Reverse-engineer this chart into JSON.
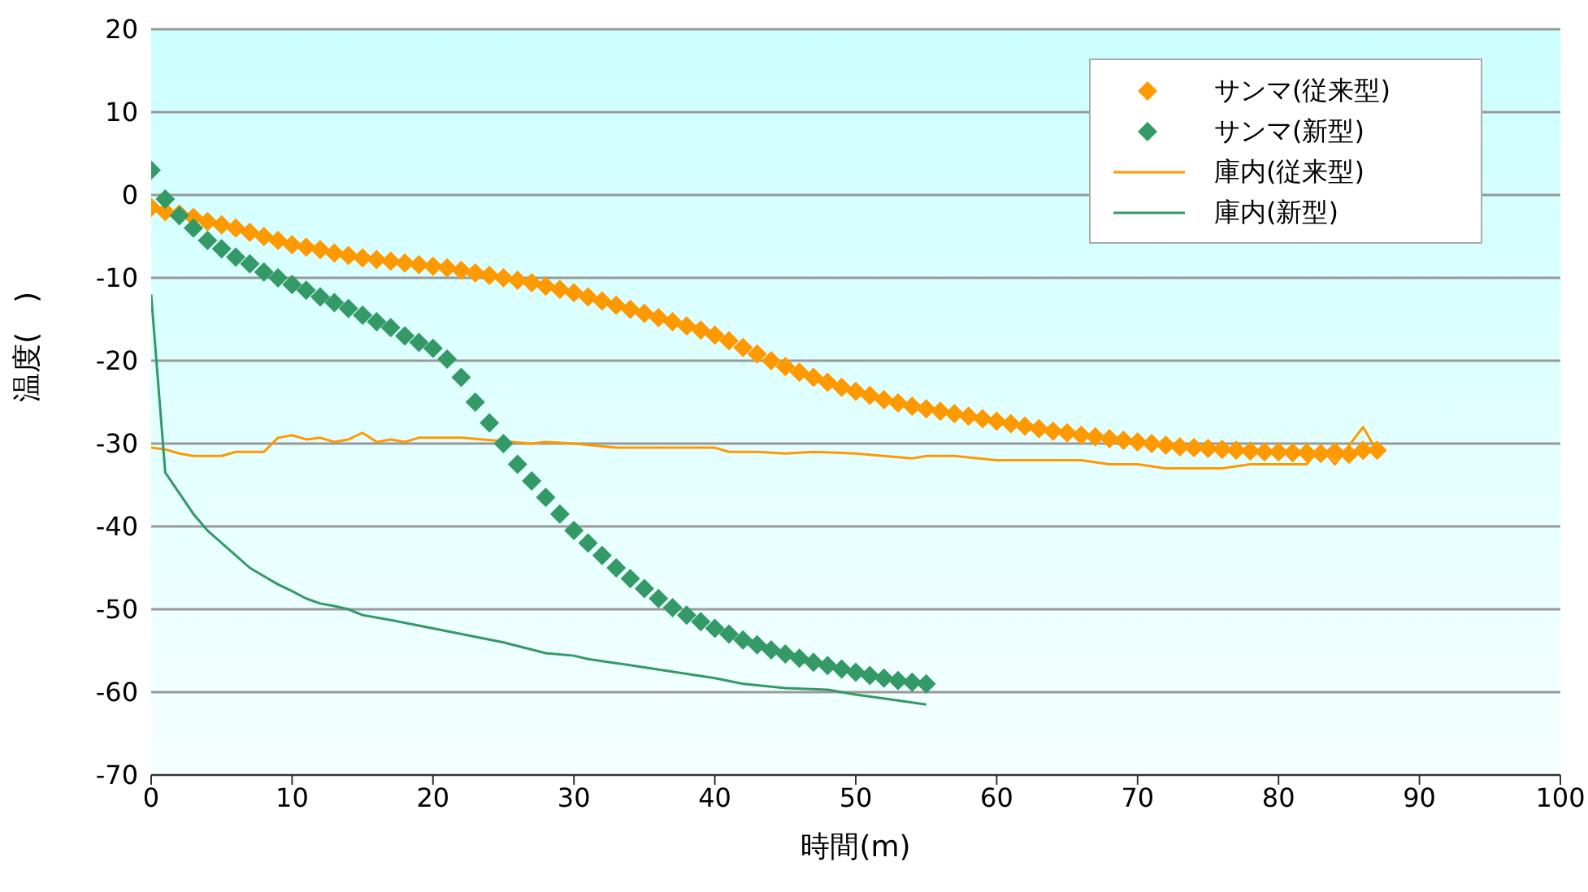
{
  "chart_data": {
    "type": "line",
    "xlabel": "時間(m)",
    "ylabel": "温度(　)",
    "xlim": [
      0,
      100
    ],
    "xticks": [
      0,
      10,
      20,
      30,
      40,
      50,
      60,
      70,
      80,
      90,
      100
    ],
    "ylim": [
      -70,
      20
    ],
    "yticks": [
      -70,
      -60,
      -50,
      -40,
      -30,
      -20,
      -10,
      0,
      10,
      20
    ],
    "grid": "y",
    "legend": "top right",
    "series": [
      {
        "name": "サンマ(従来型)",
        "type": "scatter",
        "marker": "diamond",
        "color": "#ff9900",
        "x": [
          0,
          1,
          2,
          3,
          4,
          5,
          6,
          7,
          8,
          9,
          10,
          11,
          12,
          13,
          14,
          15,
          16,
          17,
          18,
          19,
          20,
          21,
          22,
          23,
          24,
          25,
          26,
          27,
          28,
          29,
          30,
          31,
          32,
          33,
          34,
          35,
          36,
          37,
          38,
          39,
          40,
          41,
          42,
          43,
          44,
          45,
          46,
          47,
          48,
          49,
          50,
          51,
          52,
          53,
          54,
          55,
          56,
          57,
          58,
          59,
          60,
          61,
          62,
          63,
          64,
          65,
          66,
          67,
          68,
          69,
          70,
          71,
          72,
          73,
          74,
          75,
          76,
          77,
          78,
          79,
          80,
          81,
          82,
          83,
          84,
          85,
          86,
          87
        ],
        "values": [
          -1.5,
          -2,
          -2.3,
          -2.7,
          -3.2,
          -3.6,
          -4,
          -4.5,
          -5,
          -5.5,
          -6,
          -6.3,
          -6.6,
          -7,
          -7.3,
          -7.6,
          -7.8,
          -8,
          -8.2,
          -8.4,
          -8.6,
          -8.8,
          -9.1,
          -9.4,
          -9.7,
          -10,
          -10.3,
          -10.6,
          -11,
          -11.4,
          -11.8,
          -12.3,
          -12.8,
          -13.3,
          -13.8,
          -14.3,
          -14.8,
          -15.3,
          -15.8,
          -16.3,
          -16.9,
          -17.6,
          -18.4,
          -19.2,
          -20,
          -20.7,
          -21.4,
          -22,
          -22.6,
          -23.2,
          -23.7,
          -24.2,
          -24.7,
          -25.1,
          -25.5,
          -25.8,
          -26.1,
          -26.4,
          -26.7,
          -27,
          -27.3,
          -27.6,
          -27.9,
          -28.2,
          -28.5,
          -28.7,
          -29,
          -29.2,
          -29.4,
          -29.6,
          -29.8,
          -30,
          -30.2,
          -30.4,
          -30.5,
          -30.6,
          -30.7,
          -30.8,
          -30.9,
          -31,
          -31,
          -31.1,
          -31.1,
          -31.2,
          -31,
          -31.3,
          -30.8,
          -30.8
        ]
      },
      {
        "name": "サンマ(新型)",
        "type": "scatter",
        "marker": "diamond",
        "color": "#339966",
        "x": [
          0,
          1,
          2,
          3,
          4,
          5,
          6,
          7,
          8,
          9,
          10,
          11,
          12,
          13,
          14,
          15,
          16,
          17,
          18,
          19,
          20,
          21,
          22,
          23,
          24,
          25,
          26,
          27,
          28,
          29,
          30,
          31,
          32,
          33,
          34,
          35,
          36,
          37,
          38,
          39,
          40,
          41,
          42,
          43,
          44,
          45,
          46,
          47,
          48,
          49,
          50,
          51,
          52,
          53,
          54,
          55
        ],
        "values": [
          3,
          -0.5,
          -2.5,
          -4,
          -5.5,
          -6.5,
          -7.5,
          -8.3,
          -9.3,
          -10,
          -10.8,
          -11.5,
          -12.3,
          -13,
          -13.7,
          -14.5,
          -15.3,
          -16,
          -17,
          -17.8,
          -18.5,
          -19.8,
          -22,
          -25,
          -27.5,
          -30,
          -32.5,
          -34.5,
          -36.5,
          -38.5,
          -40.5,
          -42,
          -43.5,
          -45,
          -46.3,
          -47.5,
          -48.7,
          -49.8,
          -50.7,
          -51.5,
          -52.3,
          -53,
          -53.7,
          -54.3,
          -54.9,
          -55.4,
          -55.9,
          -56.4,
          -56.8,
          -57.2,
          -57.6,
          -58,
          -58.3,
          -58.6,
          -58.8,
          -59
        ]
      },
      {
        "name": "庫内(従来型)",
        "color": "#ff9900",
        "x": [
          0,
          1,
          2,
          3,
          5,
          6,
          8,
          9,
          10,
          11,
          12,
          13,
          14,
          15,
          16,
          17,
          18,
          19,
          20,
          22,
          27,
          28,
          30,
          33,
          38,
          40,
          41,
          43,
          45,
          47,
          50,
          52,
          54,
          55,
          57,
          60,
          62,
          66,
          68,
          70,
          72,
          76,
          78,
          80,
          82,
          83,
          84,
          86,
          87
        ],
        "values": [
          -30.5,
          -30.7,
          -31.2,
          -31.5,
          -31.5,
          -31,
          -31,
          -29.3,
          -29,
          -29.5,
          -29.3,
          -29.8,
          -29.5,
          -28.7,
          -29.8,
          -29.5,
          -29.8,
          -29.3,
          -29.3,
          -29.3,
          -30,
          -29.8,
          -30,
          -30.5,
          -30.5,
          -30.5,
          -31,
          -31,
          -31.2,
          -31,
          -31.2,
          -31.5,
          -31.8,
          -31.5,
          -31.5,
          -32,
          -32,
          -32,
          -32.5,
          -32.5,
          -33,
          -33,
          -32.5,
          -32.5,
          -32.5,
          -30.5,
          -32.5,
          -28,
          -31
        ]
      },
      {
        "name": "庫内(新型)",
        "color": "#339966",
        "x": [
          0,
          1,
          2,
          3,
          4,
          5,
          6,
          7,
          8,
          9,
          10,
          11,
          12,
          13,
          14,
          15,
          17,
          20,
          25,
          28,
          30,
          31,
          35,
          40,
          42,
          45,
          48,
          50,
          53,
          55
        ],
        "values": [
          -12,
          -33.5,
          -36,
          -38.5,
          -40.5,
          -42,
          -43.5,
          -45,
          -46,
          -47,
          -47.8,
          -48.7,
          -49.3,
          -49.6,
          -50,
          -50.7,
          -51.3,
          -52.3,
          -54,
          -55.3,
          -55.6,
          -56,
          -57,
          -58.3,
          -59,
          -59.5,
          -59.7,
          -60.3,
          -61,
          -61.5
        ]
      }
    ]
  }
}
